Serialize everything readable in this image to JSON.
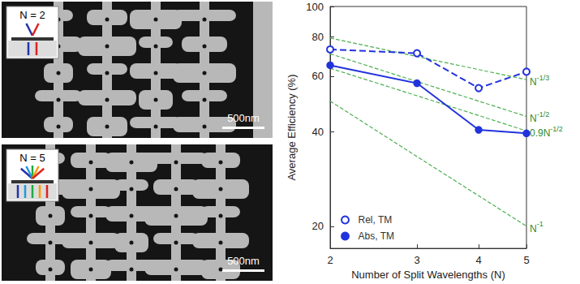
{
  "panels": [
    {
      "label": "N = 2",
      "scale_bar": "500nm"
    },
    {
      "label": "N = 5",
      "scale_bar": "500nm"
    }
  ],
  "chart_data": {
    "type": "line",
    "xlabel": "Number of Split Wavelengths (N)",
    "ylabel": "Average Efficiency (%)",
    "log": true,
    "grid": false,
    "legend": "lower left",
    "x": [
      2,
      3,
      4,
      5
    ],
    "xlim": [
      2,
      5
    ],
    "xticks": [
      2,
      3,
      4,
      5
    ],
    "ylim": [
      17,
      100
    ],
    "yticks": [
      20,
      40,
      60,
      80,
      100
    ],
    "series": [
      {
        "name": "Rel, TM",
        "color": "#2233dd",
        "marker": "open circle",
        "line_style": "dashed",
        "values": [
          73,
          71,
          55,
          62
        ]
      },
      {
        "name": "Abs, TM",
        "color": "#2233dd",
        "marker": "filled circle",
        "line_style": "solid",
        "values": [
          65,
          57,
          40.5,
          39.5
        ]
      }
    ],
    "reference_lines": [
      {
        "label": "N",
        "exponent": "-1/3",
        "color": "#4caf50",
        "line_style": "dashed",
        "values": [
          79.4,
          69.3,
          63.0,
          58.5
        ]
      },
      {
        "label": "N",
        "exponent": "-1/2",
        "color": "#4caf50",
        "line_style": "dashed",
        "values": [
          70.7,
          57.7,
          50.0,
          44.7
        ]
      },
      {
        "label": "0.9N",
        "exponent": "-1/2",
        "color": "#4caf50",
        "line_style": "dashed",
        "values": [
          63.6,
          52.0,
          45.0,
          40.2
        ]
      },
      {
        "label": "N",
        "exponent": "-1",
        "color": "#4caf50",
        "line_style": "dashed",
        "values": [
          50.0,
          33.3,
          25.0,
          20.0
        ]
      }
    ]
  }
}
